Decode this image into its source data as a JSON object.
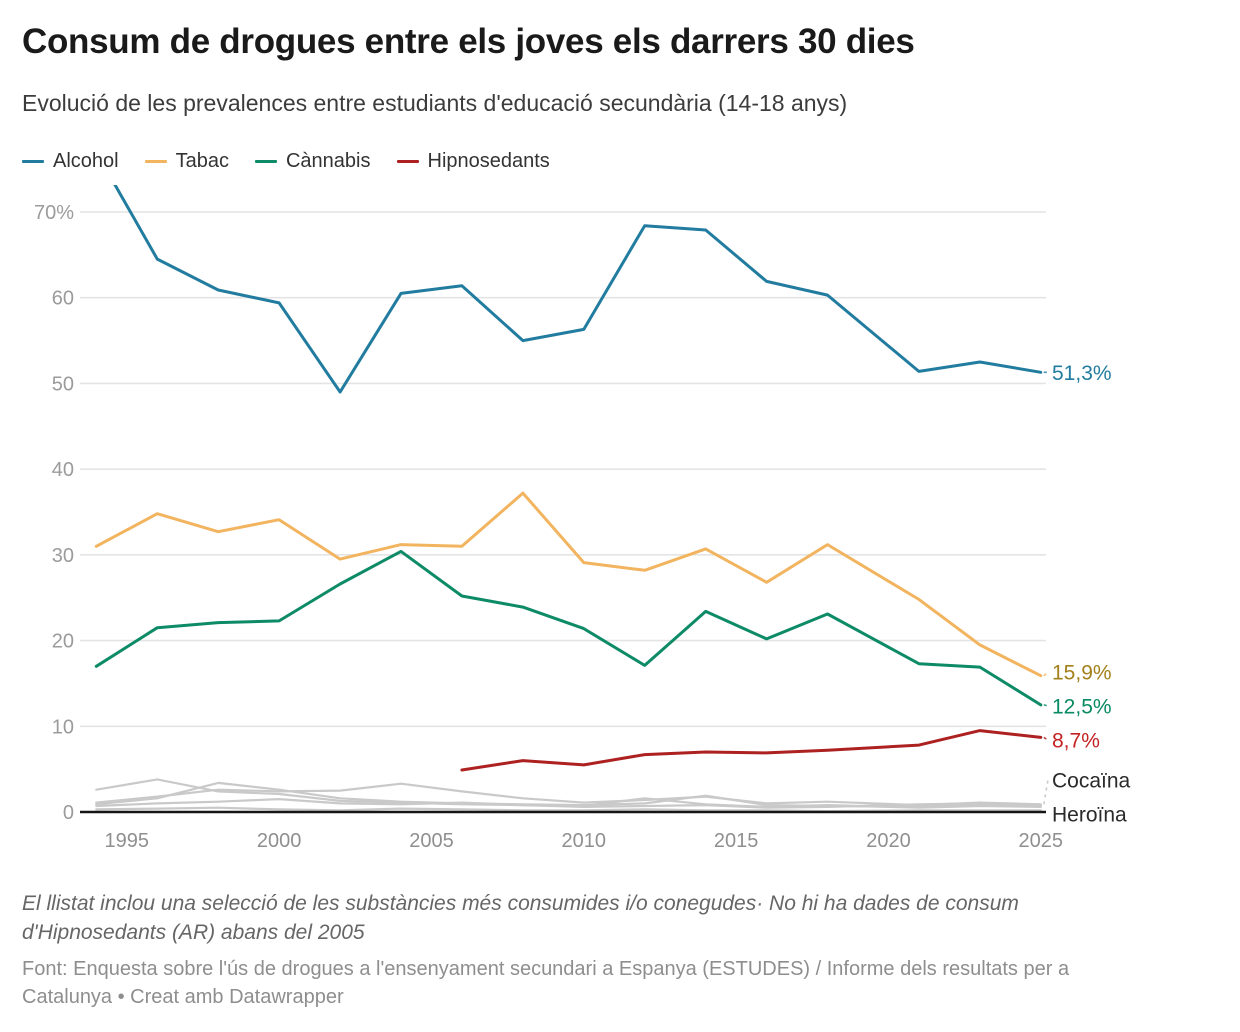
{
  "header": {
    "title": "Consum de drogues entre els joves els darrers 30 dies",
    "subtitle": "Evolució de les prevalences entre estudiants d'educació secundària (14-18 anys)"
  },
  "legend": {
    "items": [
      {
        "label": "Alcohol",
        "color": "#217c9f"
      },
      {
        "label": "Tabac",
        "color": "#f2b45f"
      },
      {
        "label": "Cànnabis",
        "color": "#0d8a66"
      },
      {
        "label": "Hipnosedants",
        "color": "#ad2121"
      }
    ]
  },
  "chart_data": {
    "type": "line",
    "title": "Consum de drogues entre els joves els darrers 30 dies",
    "xlabel": "",
    "ylabel": "",
    "ylim": [
      0,
      73
    ],
    "xlim": [
      1994,
      2026.5
    ],
    "grid": "horizontal",
    "legend_position": "top",
    "x_ticks": [
      1995,
      2000,
      2005,
      2010,
      2015,
      2020,
      2025
    ],
    "y_ticks": [
      0,
      10,
      20,
      30,
      40,
      50,
      60,
      70
    ],
    "y_top_tick_label": "70%",
    "years": [
      1994,
      1996,
      1998,
      2000,
      2002,
      2004,
      2006,
      2008,
      2010,
      2012,
      2014,
      2016,
      2018,
      2021,
      2023,
      2025
    ],
    "series": [
      {
        "id": "unlabeled-1",
        "name": "",
        "color": "#c9c9c9",
        "gray": true,
        "values": [
          2.6,
          3.8,
          2.4,
          2.1,
          1.3,
          1.1,
          0.9,
          0.8,
          0.7,
          1.6,
          0.9,
          0.6,
          0.8,
          0.5,
          0.7,
          0.6
        ]
      },
      {
        "id": "unlabeled-2",
        "name": "",
        "color": "#c9c9c9",
        "gray": true,
        "values": [
          0.9,
          1.6,
          3.4,
          2.6,
          1.6,
          1.2,
          1.0,
          0.9,
          0.8,
          1.0,
          1.9,
          0.8,
          0.7,
          0.6,
          0.8,
          0.7
        ]
      },
      {
        "id": "unlabeled-3",
        "name": "",
        "color": "#c9c9c9",
        "gray": true,
        "values": [
          0.7,
          1.0,
          1.2,
          1.5,
          1.0,
          0.9,
          1.1,
          0.8,
          0.6,
          0.7,
          0.8,
          0.5,
          0.6,
          0.9,
          1.0,
          0.8
        ]
      },
      {
        "id": "heroina",
        "name": "Heroïna",
        "color": "#c9c9c9",
        "gray": true,
        "end_label": "Heroïna",
        "label_color": "#2a2a2a",
        "no_connector": true,
        "values": [
          0.3,
          0.4,
          0.5,
          0.3,
          0.2,
          0.4,
          0.3,
          0.2,
          0.2,
          0.3,
          0.2,
          0.2,
          0.1,
          0.2,
          0.2,
          0.2
        ]
      },
      {
        "id": "cocaina",
        "name": "Cocaïna",
        "color": "#c9c9c9",
        "gray": true,
        "end_label": "Cocaïna",
        "label_color": "#2a2a2a",
        "connector_color": "#c0c0c0",
        "values": [
          1.1,
          1.8,
          2.6,
          2.4,
          2.5,
          3.3,
          2.4,
          1.6,
          1.1,
          1.4,
          1.8,
          1.0,
          1.2,
          0.8,
          1.1,
          0.9
        ]
      },
      {
        "id": "tabac",
        "name": "Tabac",
        "color": "#f2b45f",
        "end_label": "15,9%",
        "label_color": "#a2801b",
        "values": [
          31.0,
          34.8,
          32.7,
          34.1,
          29.5,
          31.2,
          31.0,
          37.2,
          29.1,
          28.2,
          30.7,
          26.8,
          31.2,
          24.8,
          19.5,
          15.9
        ]
      },
      {
        "id": "cannabis",
        "name": "Cànnabis",
        "color": "#0d8a66",
        "end_label": "12,5%",
        "label_color": "#088a63",
        "values": [
          17.0,
          21.5,
          22.1,
          22.3,
          26.6,
          30.4,
          25.2,
          23.9,
          21.4,
          17.1,
          23.4,
          20.2,
          23.1,
          17.3,
          16.9,
          12.5
        ]
      },
      {
        "id": "hipnosedants",
        "name": "Hipnosedants",
        "color": "#ad2121",
        "end_label": "8,7%",
        "label_color": "#c32222",
        "values": [
          null,
          null,
          null,
          null,
          null,
          null,
          4.9,
          6.0,
          5.5,
          6.7,
          7.0,
          6.9,
          7.2,
          7.8,
          9.5,
          8.7
        ]
      },
      {
        "id": "alcohol",
        "name": "Alcohol",
        "color": "#217c9f",
        "end_label": "51,3%",
        "label_color": "#217c9f",
        "values": [
          77.0,
          64.5,
          60.9,
          59.4,
          49.0,
          60.5,
          61.4,
          55.0,
          56.3,
          68.4,
          67.9,
          61.9,
          60.3,
          51.4,
          52.5,
          51.3
        ]
      }
    ]
  },
  "footer": {
    "note": "El llistat inclou una selecció de les substàncies més consumides i/o conegudes· No hi ha dades de consum d'Hipnosedants (AR) abans del 2005",
    "source": "Font: Enquesta sobre l'ús de drogues a l'ensenyament secundari a Espanya (ESTUDES) / Informe dels resultats per a Catalunya • Creat amb Datawrapper"
  }
}
